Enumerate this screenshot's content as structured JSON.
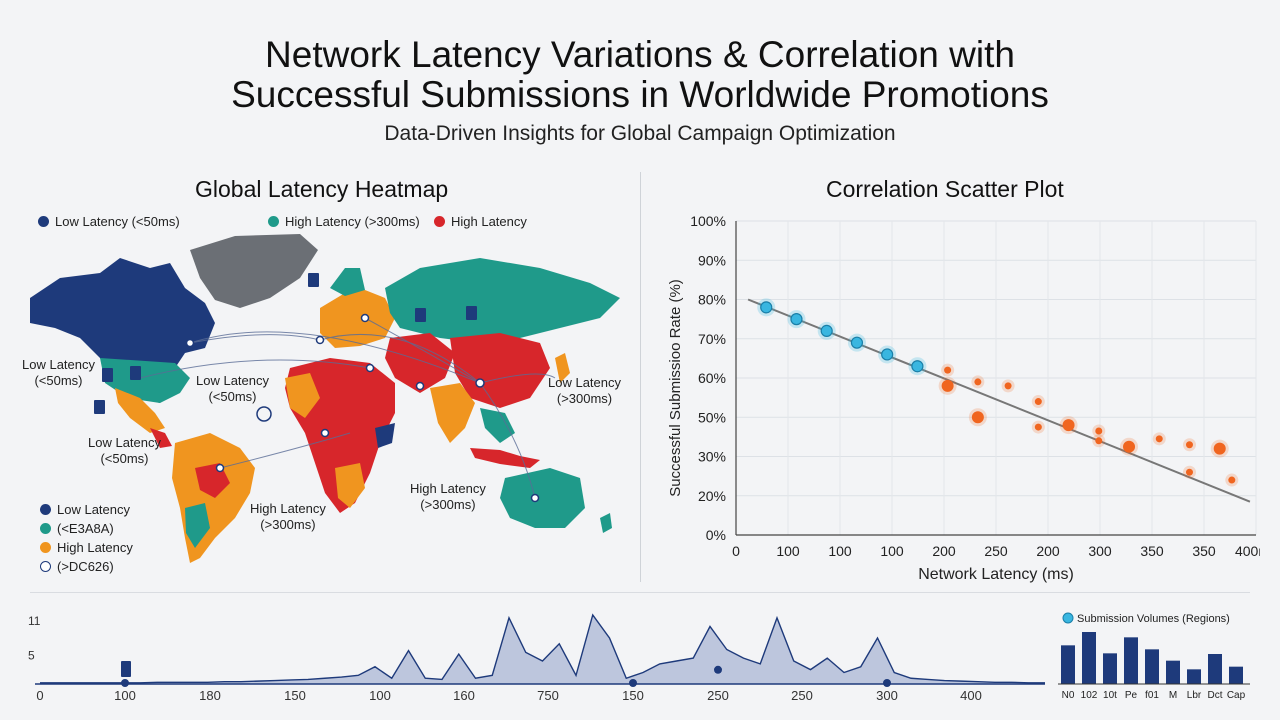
{
  "header": {
    "title_line1": "Network Latency Variations & Correlation with",
    "title_line2": "Successful Submissions in Worldwide Promotions",
    "subtitle": "Data-Driven Insights for Global Campaign Optimization"
  },
  "map_panel": {
    "title": "Global Latency Heatmap",
    "top_legend": [
      {
        "label": "Low Latency (<50ms)",
        "color": "#1e3a7b"
      },
      {
        "label": "High Latency (>300ms)",
        "color": "#1f9a8a"
      },
      {
        "label": "High Latency",
        "color": "#d7262b"
      }
    ],
    "map_labels": {
      "na": "Low Latency\n(<50ms)",
      "atl": "Low Latency\n(<50ms)",
      "sa": "Low Latency\n(<50ms)",
      "asia": "Low Latency\n(>300ms)",
      "africa": "High Latency\n(>300ms)",
      "se": "High Latency\n(>300ms)"
    },
    "bottom_legend": [
      {
        "label": "Low Latency",
        "color": "#1e3a7b"
      },
      {
        "label": "(<E3A8A)",
        "color": "#1f9a8a"
      },
      {
        "label": "High Latency",
        "color": "#f0951f"
      },
      {
        "label": "(>DC626)",
        "color": "#ffffff"
      }
    ],
    "colors": {
      "low": "#1e3a7b",
      "teal": "#1f9a8a",
      "orange": "#f0951f",
      "red": "#d7262b",
      "gray": "#6b6f75"
    }
  },
  "chart_data": [
    {
      "type": "scatter",
      "title": "Correlation Scatter Plot",
      "xlabel": "Network Latency (ms)",
      "ylabel": "Successful Submissioo Rate (%)",
      "x_ticks": [
        "0",
        "100",
        "100",
        "100",
        "200",
        "250",
        "200",
        "300",
        "350",
        "350",
        "400ms"
      ],
      "y_ticks": [
        "0%",
        "20%",
        "30%",
        "50%",
        "60%",
        "70%",
        "80%",
        "90%",
        "100%"
      ],
      "trend_line": {
        "x": [
          0,
          400
        ],
        "y": [
          80,
          17
        ]
      },
      "series": [
        {
          "color": "#39b6e0",
          "points": [
            [
              50,
              78
            ],
            [
              100,
              75
            ],
            [
              150,
              72
            ],
            [
              200,
              69
            ],
            [
              250,
              66
            ],
            [
              300,
              63
            ]
          ]
        },
        {
          "color": "#f0651f",
          "points": [
            [
              350,
              62
            ],
            [
              350,
              58
            ],
            [
              400,
              59
            ],
            [
              450,
              58
            ],
            [
              400,
              50
            ],
            [
              500,
              54
            ],
            [
              500,
              45
            ],
            [
              550,
              46
            ],
            [
              600,
              43
            ],
            [
              600,
              38
            ],
            [
              650,
              35
            ],
            [
              700,
              39
            ],
            [
              750,
              36
            ],
            [
              800,
              34
            ],
            [
              750,
              26
            ],
            [
              820,
              24
            ]
          ]
        }
      ],
      "grid": true
    },
    {
      "type": "area",
      "x_tick_labels": [
        "0",
        "100",
        "180",
        "150",
        "100",
        "160",
        "750",
        "150",
        "250",
        "250",
        "300",
        "400"
      ],
      "y_tick_labels": [
        "11",
        "5"
      ],
      "values": [
        0.2,
        0.2,
        0.2,
        0.2,
        0.2,
        0.2,
        0.2,
        0.3,
        0.3,
        0.3,
        0.3,
        0.4,
        0.4,
        0.5,
        0.6,
        0.7,
        0.8,
        1.0,
        1.2,
        1.5,
        3.0,
        1.0,
        5.8,
        1.0,
        0.8,
        5.2,
        1.0,
        1.5,
        11.5,
        5.5,
        4.0,
        7.0,
        1.5,
        12.0,
        8.0,
        1.0,
        2.0,
        3.5,
        4.0,
        4.5,
        10.0,
        6.0,
        4.5,
        3.5,
        11.5,
        4.0,
        2.5,
        4.5,
        2.0,
        3.0,
        8.0,
        2.0,
        1.0,
        0.8,
        0.6,
        0.5,
        0.4,
        0.3,
        0.3,
        0.2,
        0.2
      ],
      "ylim": [
        0,
        12
      ],
      "color": "#8fa0c8"
    },
    {
      "type": "bar",
      "title": "Submission Volumes (Regions)",
      "categories": [
        "N0",
        "102",
        "10t",
        "Pe",
        "f01",
        "M",
        "Lbr",
        "Dct",
        "Cap"
      ],
      "values": [
        58,
        78,
        46,
        70,
        52,
        35,
        22,
        45,
        26
      ],
      "ylim": [
        0,
        90
      ],
      "color": "#1e3a7b"
    }
  ]
}
